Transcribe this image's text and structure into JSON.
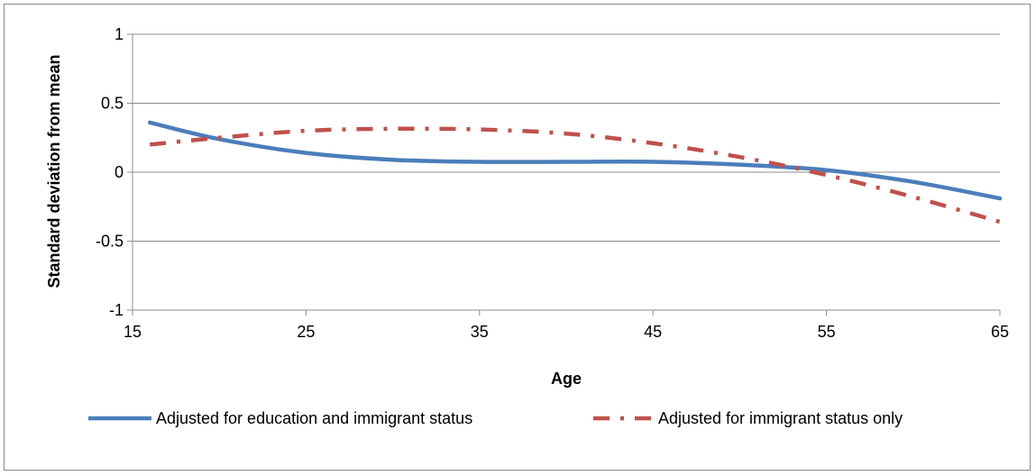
{
  "chart_data": {
    "type": "line",
    "title": "",
    "xlabel": "Age",
    "ylabel": "Standard deviation from mean",
    "xlim": [
      15,
      65
    ],
    "ylim": [
      -1,
      1
    ],
    "x_ticks": [
      "15",
      "25",
      "35",
      "45",
      "55",
      "65"
    ],
    "y_ticks": [
      "1",
      "0.5",
      "0",
      "-0.5",
      "-1"
    ],
    "x_tick_values": [
      15,
      25,
      35,
      45,
      55,
      65
    ],
    "y_tick_values": [
      1,
      0.5,
      0,
      -0.5,
      -1
    ],
    "gridlines": "horizontal",
    "legend_position": "bottom",
    "series": [
      {
        "name": "Adjusted for education and immigrant status",
        "color": "#4a7ebb",
        "style": "solid",
        "x": [
          16,
          20,
          25,
          30,
          35,
          40,
          45,
          50,
          55,
          60,
          65
        ],
        "y": [
          0.36,
          0.24,
          0.14,
          0.09,
          0.075,
          0.075,
          0.075,
          0.055,
          0.015,
          -0.07,
          -0.19
        ]
      },
      {
        "name": "Adjusted for immigrant status only",
        "color": "#c0504d",
        "style": "dash-dot",
        "x": [
          16,
          20,
          25,
          30,
          35,
          40,
          45,
          50,
          55,
          60,
          65
        ],
        "y": [
          0.2,
          0.25,
          0.3,
          0.315,
          0.31,
          0.28,
          0.21,
          0.11,
          -0.02,
          -0.18,
          -0.36
        ]
      }
    ]
  }
}
